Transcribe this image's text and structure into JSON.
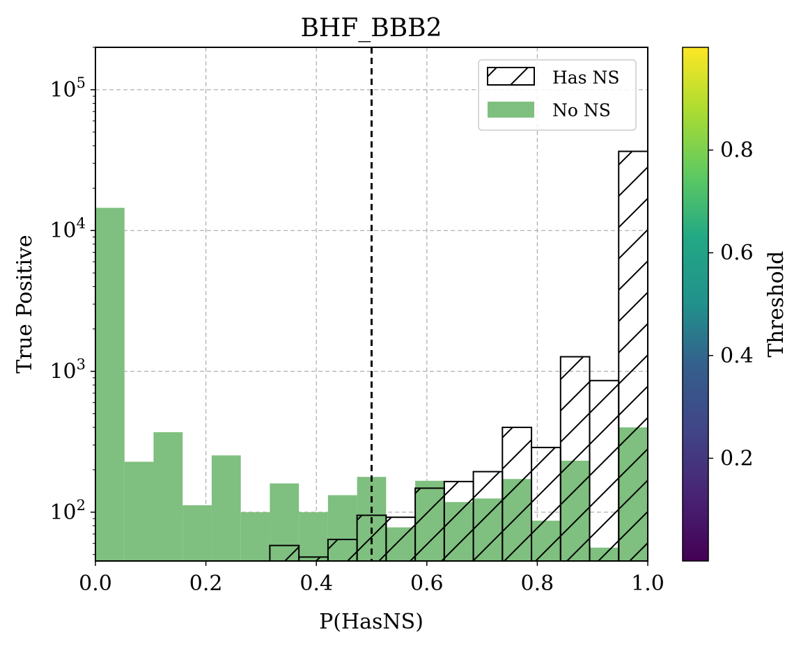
{
  "chart_data": {
    "type": "bar",
    "title": "BHF_BBB2",
    "xlabel": "P(HasNS)",
    "ylabel": "True Positive",
    "xlim": [
      0.0,
      1.0
    ],
    "ylim": [
      45,
      200000
    ],
    "y_scale": "log",
    "grid": true,
    "legend_position": "top-right",
    "x_ticks": [
      {
        "value": 0.0,
        "label": "0.0"
      },
      {
        "value": 0.2,
        "label": "0.2"
      },
      {
        "value": 0.4,
        "label": "0.4"
      },
      {
        "value": 0.6,
        "label": "0.6"
      },
      {
        "value": 0.8,
        "label": "0.8"
      },
      {
        "value": 1.0,
        "label": "1.0"
      }
    ],
    "y_ticks": [
      {
        "value": 100,
        "base": "10",
        "exp": "2"
      },
      {
        "value": 1000,
        "base": "10",
        "exp": "3"
      },
      {
        "value": 10000,
        "base": "10",
        "exp": "4"
      },
      {
        "value": 100000,
        "base": "10",
        "exp": "5"
      }
    ],
    "bin_edges": [
      0.0,
      0.05263,
      0.10526,
      0.15789,
      0.21053,
      0.26316,
      0.31579,
      0.36842,
      0.42105,
      0.47368,
      0.52632,
      0.57895,
      0.63158,
      0.68421,
      0.73684,
      0.78947,
      0.84211,
      0.89474,
      0.94737,
      1.0
    ],
    "series": [
      {
        "name": "No NS",
        "style": "filled",
        "color": "#7fbf7f",
        "values": [
          14500,
          228,
          370,
          112,
          253,
          100,
          160,
          100,
          132,
          178,
          78,
          167,
          118,
          125,
          172,
          87,
          232,
          56,
          400
        ]
      },
      {
        "name": "Has NS",
        "style": "hatched",
        "color": "#000000",
        "values": [
          0,
          0,
          0,
          0,
          0,
          0,
          58,
          48,
          64,
          95,
          92,
          148,
          165,
          194,
          400,
          288,
          1270,
          860,
          36500
        ]
      }
    ],
    "reference_line": {
      "x": 0.5,
      "style": "dashed",
      "color": "#000000"
    },
    "colorbar": {
      "label": "Threshold",
      "colormap": "viridis",
      "range": [
        0.0,
        1.0
      ],
      "ticks": [
        {
          "value": 0.2,
          "label": "0.2"
        },
        {
          "value": 0.4,
          "label": "0.4"
        },
        {
          "value": 0.6,
          "label": "0.6"
        },
        {
          "value": 0.8,
          "label": "0.8"
        }
      ]
    }
  }
}
